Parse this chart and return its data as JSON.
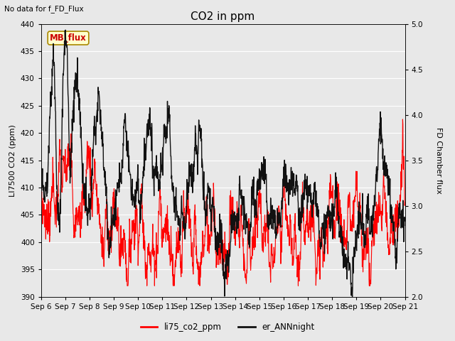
{
  "title": "CO2 in ppm",
  "top_left_text": "No data for f_FD_Flux",
  "ylabel_left": "LI7500 CO2 (ppm)",
  "ylabel_right": "FD Chamber flux",
  "ylim_left": [
    390,
    440
  ],
  "ylim_right": [
    2.0,
    5.0
  ],
  "yticks_left": [
    390,
    395,
    400,
    405,
    410,
    415,
    420,
    425,
    430,
    435,
    440
  ],
  "yticks_right": [
    2.0,
    2.5,
    3.0,
    3.5,
    4.0,
    4.5,
    5.0
  ],
  "xtick_labels": [
    "Sep 6",
    "Sep 7",
    "Sep 8",
    "Sep 9",
    "Sep 10",
    "Sep 11",
    "Sep 12",
    "Sep 13",
    "Sep 14",
    "Sep 15",
    "Sep 16",
    "Sep 17",
    "Sep 18",
    "Sep 19",
    "Sep 20",
    "Sep 21"
  ],
  "color_red": "#ff0000",
  "color_black": "#111111",
  "legend_red": "li75_co2_ppm",
  "legend_black": "er_ANNnight",
  "mb_flux_label": "MB_flux",
  "mb_flux_bg": "#ffffcc",
  "mb_flux_border": "#aa8800",
  "mb_flux_text_color": "#cc0000",
  "background_plot": "#e8e8e8",
  "background_fig": "#e8e8e8",
  "grid_color": "#ffffff",
  "linewidth_red": 0.8,
  "linewidth_black": 1.0,
  "title_fontsize": 11,
  "label_fontsize": 8,
  "tick_fontsize": 7.5
}
